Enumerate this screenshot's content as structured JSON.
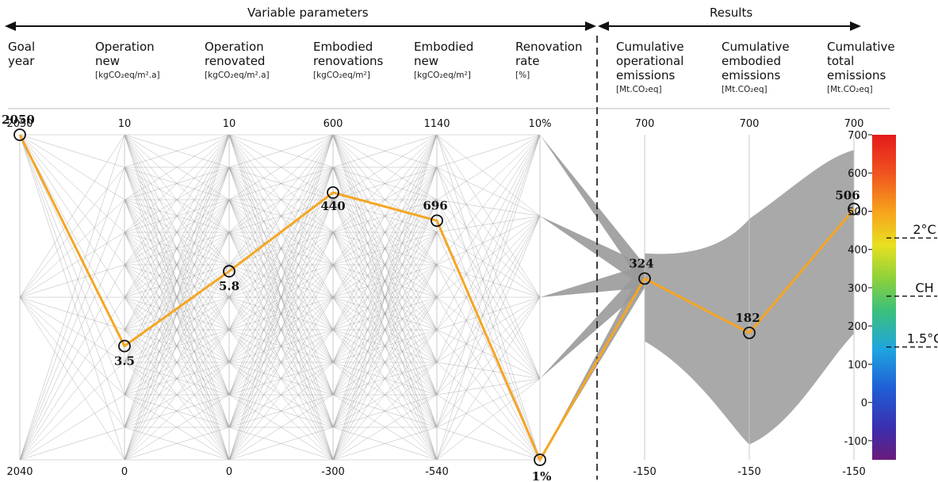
{
  "header": {
    "variable_parameters": "Variable parameters",
    "results": "Results"
  },
  "columns": [
    {
      "label": "Goal year",
      "lines": [
        "Goal",
        "year"
      ],
      "unit": "",
      "top": "2050",
      "bottom": "2040"
    },
    {
      "label": "Operation new",
      "lines": [
        "Operation",
        "new"
      ],
      "unit": "[kgCO₂eq/m².a]",
      "top": "10",
      "bottom": "0"
    },
    {
      "label": "Operation renovated",
      "lines": [
        "Operation",
        "renovated"
      ],
      "unit": "[kgCO₂eq/m².a]",
      "top": "10",
      "bottom": "0"
    },
    {
      "label": "Embodied renovations",
      "lines": [
        "Embodied",
        "renovations"
      ],
      "unit": "[kgCO₂eq/m²]",
      "top": "600",
      "bottom": "-300"
    },
    {
      "label": "Embodied new",
      "lines": [
        "Embodied",
        "new"
      ],
      "unit": "[kgCO₂eq/m²]",
      "top": "1140",
      "bottom": "-540"
    },
    {
      "label": "Renovation rate",
      "lines": [
        "Renovation",
        "rate"
      ],
      "unit": "[%]",
      "top": "10%",
      "bottom": ""
    },
    {
      "label": "Cumulative operational emissions",
      "lines": [
        "Cumulative",
        "operational",
        "emissions"
      ],
      "unit": "[Mt.CO₂eq]",
      "top": "700",
      "bottom": "-150"
    },
    {
      "label": "Cumulative embodied emissions",
      "lines": [
        "Cumulative",
        "embodied",
        "emissions"
      ],
      "unit": "[Mt.CO₂eq]",
      "top": "700",
      "bottom": "-150"
    },
    {
      "label": "Cumulative total emissions",
      "lines": [
        "Cumulative",
        "total",
        "emissions"
      ],
      "unit": "[Mt.CO₂eq]",
      "top": "700",
      "bottom": "-150"
    }
  ],
  "chart_data": {
    "type": "parallel-coordinates",
    "axes": [
      {
        "name": "Goal year",
        "range": [
          2040,
          2050
        ]
      },
      {
        "name": "Operation new",
        "range": [
          0,
          10
        ]
      },
      {
        "name": "Operation renovated",
        "range": [
          0,
          10
        ]
      },
      {
        "name": "Embodied renovations",
        "range": [
          -300,
          600
        ]
      },
      {
        "name": "Embodied new",
        "range": [
          -540,
          1140
        ]
      },
      {
        "name": "Renovation rate",
        "range": [
          1,
          10
        ]
      },
      {
        "name": "Cumulative operational emissions",
        "range": [
          -150,
          700
        ]
      },
      {
        "name": "Cumulative embodied emissions",
        "range": [
          -150,
          700
        ]
      },
      {
        "name": "Cumulative total emissions",
        "range": [
          -150,
          700
        ]
      }
    ],
    "highlighted": {
      "values": [
        2050,
        3.5,
        5.8,
        440,
        696,
        1,
        324,
        182,
        506
      ],
      "labels": [
        "2050",
        "3.5",
        "5.8",
        "440",
        "696",
        "1%",
        "324",
        "182",
        "506"
      ],
      "color": "#f5a623"
    },
    "background_line_color": "#9a9a9a",
    "colorbar": {
      "range": [
        -150,
        700
      ],
      "ticks": [
        -100,
        0,
        100,
        200,
        300,
        400,
        500,
        600,
        700
      ],
      "tick_labels": [
        "-100",
        "0",
        "100",
        "200",
        "300",
        "400",
        "500",
        "600",
        "700"
      ]
    },
    "thresholds": [
      {
        "label": "2°C",
        "value": 430
      },
      {
        "label": "CH",
        "value": 278
      },
      {
        "label": "1.5°C",
        "value": 145
      }
    ]
  }
}
